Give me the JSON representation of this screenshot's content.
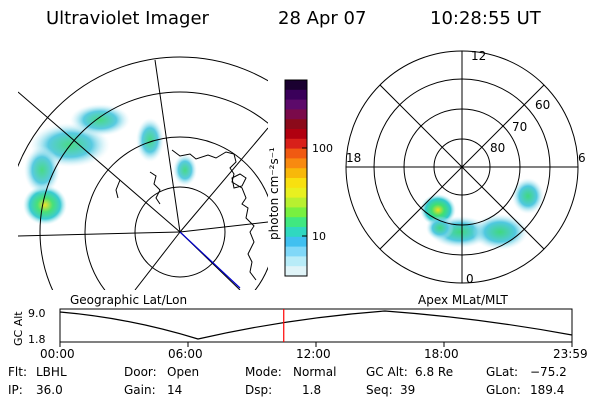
{
  "header": {
    "instrument": "Ultraviolet Imager",
    "date": "28 Apr 07",
    "time": "10:28:55 UT"
  },
  "colorbar": {
    "label": "photon cm⁻²s⁻¹",
    "ticks": [
      "100",
      "10"
    ],
    "colors": [
      "#1a0030",
      "#3a005a",
      "#5c0a6a",
      "#7a0a4a",
      "#8b0a1a",
      "#b00010",
      "#d8201a",
      "#f05a12",
      "#f88a10",
      "#f8b80a",
      "#f8e010",
      "#e8f020",
      "#b8f030",
      "#78f040",
      "#40e880",
      "#30d8c0",
      "#40c0f0",
      "#80d8f8",
      "#b8ecf8",
      "#e0f4f8"
    ]
  },
  "left_map": {
    "caption": "Geographic Lat/Lon"
  },
  "right_map": {
    "caption": "Apex MLat/MLT",
    "mlt_labels": {
      "top": "12",
      "left": "18",
      "right": "6",
      "bottom": "0"
    },
    "lat_labels": [
      "60",
      "70",
      "80"
    ]
  },
  "timeline": {
    "ylabel": "GC Alt",
    "yticks": [
      "9.0",
      "1.8"
    ],
    "xticks": [
      "00:00",
      "06:00",
      "12:00",
      "18:00",
      "23:59"
    ],
    "current_fraction": 0.437
  },
  "params": {
    "flt_label": "Flt:",
    "flt_value": "LBHL",
    "ip_label": "IP:",
    "ip_value": "36.0",
    "door_label": "Door:",
    "door_value": "Open",
    "gain_label": "Gain:",
    "gain_value": "14",
    "mode_label": "Mode:",
    "mode_value": "Normal",
    "dsp_label": "Dsp:",
    "dsp_value": "1.8",
    "gcalt_label": "GC Alt:",
    "gcalt_value": "6.8 Re",
    "seq_label": "Seq:",
    "seq_value": "39",
    "glat_label": "GLat:",
    "glat_value": "−75.2",
    "glon_label": "GLon:",
    "glon_value": "189.4"
  },
  "colors": {
    "current_time_marker": "#ff0000",
    "nadir_line": "#0000c8"
  }
}
